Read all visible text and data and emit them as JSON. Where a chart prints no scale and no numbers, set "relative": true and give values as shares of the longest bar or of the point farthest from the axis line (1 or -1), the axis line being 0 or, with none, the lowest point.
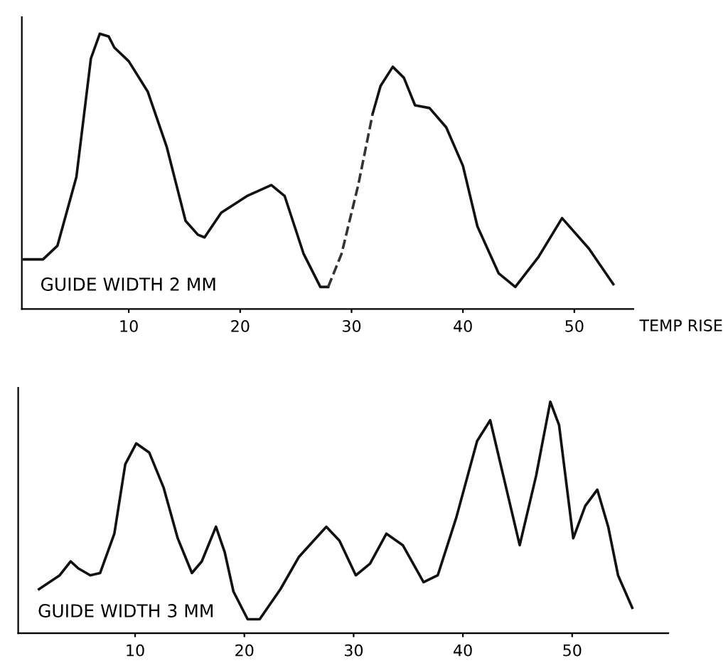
{
  "chart_data": [
    {
      "type": "line",
      "relative": true,
      "xlabel": "TEMP RISE",
      "annotations": [
        "GUIDE WIDTH 2 MM"
      ],
      "xlim": [
        0.4,
        55.3
      ],
      "xticks": [
        10,
        20,
        30,
        40,
        50
      ],
      "tick_labels": "x",
      "grid": false,
      "marker": "none",
      "series": [
        {
          "color": "#111111",
          "line_style": "solid",
          "x": [
            0.6,
            2.3,
            3.6,
            5.3,
            6.6,
            7.4,
            8.2,
            8.7,
            10.0,
            11.7,
            13.4,
            15.1,
            16.2,
            16.8,
            18.3,
            20.6,
            22.8,
            24.0,
            25.7,
            27.2,
            27.9,
            29.9,
            31.9,
            32.6,
            33.7,
            34.7,
            35.7,
            37.0,
            38.5,
            40.0,
            41.3,
            43.2,
            44.7,
            46.8,
            48.9,
            51.3,
            53.5
          ],
          "values": [
            0.18,
            0.18,
            0.23,
            0.48,
            0.91,
            1.0,
            0.99,
            0.95,
            0.9,
            0.79,
            0.59,
            0.32,
            0.27,
            0.26,
            0.35,
            0.41,
            0.45,
            0.41,
            0.2,
            0.08,
            0.08,
            null,
            0.71,
            0.81,
            0.88,
            0.84,
            0.74,
            0.73,
            0.66,
            0.52,
            0.3,
            0.13,
            0.08,
            0.19,
            0.33,
            0.22,
            0.09
          ]
        },
        {
          "color": "#333333",
          "line_style": "dashed",
          "x": [
            27.9,
            29.1,
            30.6,
            31.9
          ],
          "values": [
            0.08,
            0.2,
            0.45,
            0.71
          ]
        }
      ]
    },
    {
      "type": "line",
      "relative": true,
      "annotations": [
        "GUIDE WIDTH 3 MM"
      ],
      "xlim": [
        -0.7,
        58.8
      ],
      "xticks": [
        10,
        20,
        30,
        40,
        50
      ],
      "tick_labels": "x",
      "grid": false,
      "marker": "none",
      "series": [
        {
          "color": "#111111",
          "line_style": "solid",
          "x": [
            1.2,
            3.1,
            4.1,
            4.8,
            5.9,
            6.8,
            8.1,
            9.1,
            10.1,
            11.3,
            12.6,
            13.9,
            15.2,
            16.1,
            17.4,
            18.2,
            19.0,
            20.3,
            21.4,
            23.3,
            25.0,
            27.5,
            28.7,
            30.2,
            31.5,
            33.0,
            34.5,
            36.4,
            37.7,
            39.4,
            41.3,
            42.5,
            43.7,
            45.2,
            46.7,
            48.0,
            48.8,
            50.1,
            51.2,
            52.3,
            53.3,
            54.2,
            55.5
          ],
          "values": [
            0.19,
            0.25,
            0.31,
            0.28,
            0.25,
            0.26,
            0.43,
            0.73,
            0.82,
            0.78,
            0.63,
            0.41,
            0.26,
            0.31,
            0.46,
            0.35,
            0.18,
            0.06,
            0.06,
            0.19,
            0.33,
            0.46,
            0.4,
            0.25,
            0.3,
            0.43,
            0.38,
            0.22,
            0.25,
            0.5,
            0.83,
            0.92,
            0.68,
            0.38,
            0.68,
            1.0,
            0.9,
            0.41,
            0.55,
            0.62,
            0.46,
            0.25,
            0.11
          ]
        }
      ]
    }
  ]
}
